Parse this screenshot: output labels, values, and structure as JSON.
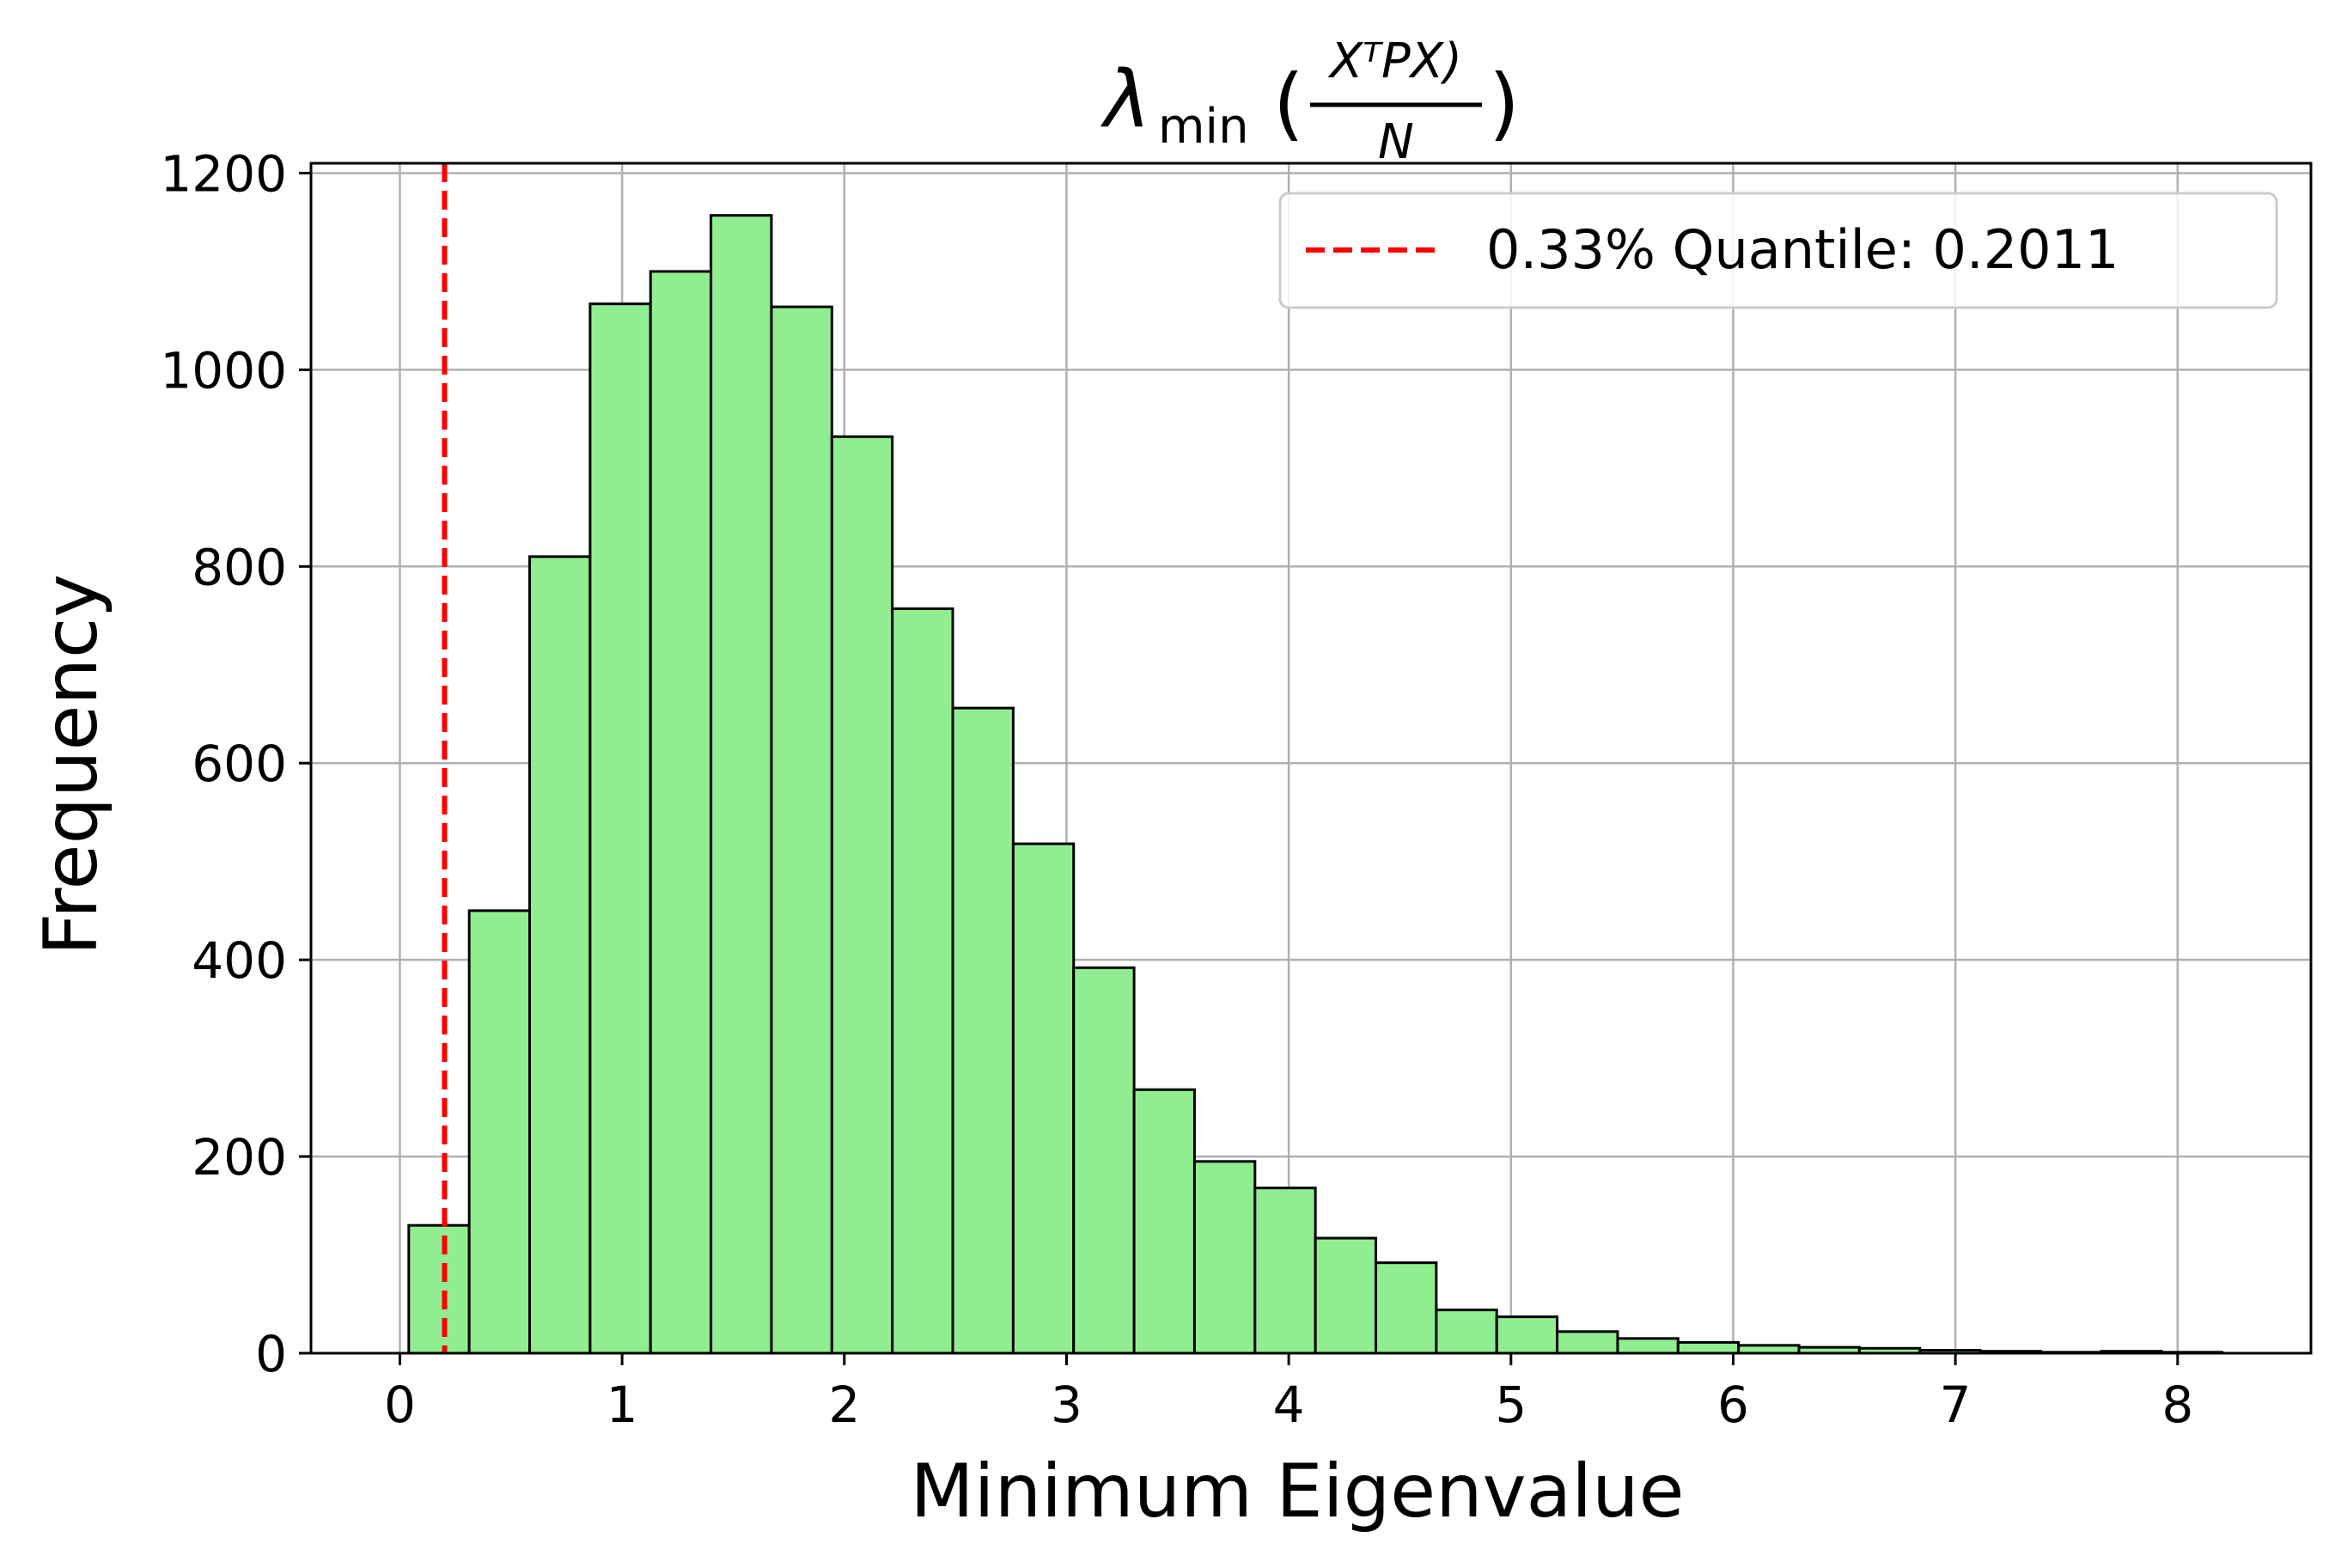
{
  "chart_data": {
    "type": "bar",
    "title": {
      "symbol": "λ",
      "subscript": "min",
      "open_paren": "(",
      "numerator": "XᵀPX)",
      "denominator": "N",
      "close_paren": ")"
    },
    "xlabel": "Minimum Eigenvalue",
    "ylabel": "Frequency",
    "xlim": [
      -0.4,
      8.6
    ],
    "ylim": [
      0,
      1210
    ],
    "x_ticks": [
      0,
      1,
      2,
      3,
      4,
      5,
      6,
      7,
      8
    ],
    "y_ticks": [
      0,
      200,
      400,
      600,
      800,
      1000,
      1200
    ],
    "grid": true,
    "bin_width": 0.272,
    "bins": [
      {
        "x0": 0.04,
        "count": 130
      },
      {
        "x0": 0.312,
        "count": 450
      },
      {
        "x0": 0.584,
        "count": 810
      },
      {
        "x0": 0.856,
        "count": 1067
      },
      {
        "x0": 1.128,
        "count": 1100
      },
      {
        "x0": 1.4,
        "count": 1157
      },
      {
        "x0": 1.672,
        "count": 1064
      },
      {
        "x0": 1.944,
        "count": 932
      },
      {
        "x0": 2.216,
        "count": 757
      },
      {
        "x0": 2.488,
        "count": 656
      },
      {
        "x0": 2.76,
        "count": 518
      },
      {
        "x0": 3.032,
        "count": 392
      },
      {
        "x0": 3.304,
        "count": 268
      },
      {
        "x0": 3.576,
        "count": 195
      },
      {
        "x0": 3.848,
        "count": 168
      },
      {
        "x0": 4.12,
        "count": 117
      },
      {
        "x0": 4.392,
        "count": 92
      },
      {
        "x0": 4.664,
        "count": 44
      },
      {
        "x0": 4.936,
        "count": 37
      },
      {
        "x0": 5.208,
        "count": 22
      },
      {
        "x0": 5.48,
        "count": 15
      },
      {
        "x0": 5.752,
        "count": 11
      },
      {
        "x0": 6.024,
        "count": 8
      },
      {
        "x0": 6.296,
        "count": 6
      },
      {
        "x0": 6.568,
        "count": 5
      },
      {
        "x0": 6.84,
        "count": 3
      },
      {
        "x0": 7.112,
        "count": 2
      },
      {
        "x0": 7.384,
        "count": 1
      },
      {
        "x0": 7.656,
        "count": 2
      },
      {
        "x0": 7.928,
        "count": 1
      }
    ],
    "reference_line": {
      "x": 0.2011,
      "label": "0.33% Quantile: 0.2011",
      "style": "dashed"
    },
    "legend_position": "top-right",
    "colors": {
      "bar_fill": "#90ee90",
      "bar_edge": "#000000",
      "reference_line": "#ff0000",
      "grid": "#b0b0b0"
    }
  }
}
